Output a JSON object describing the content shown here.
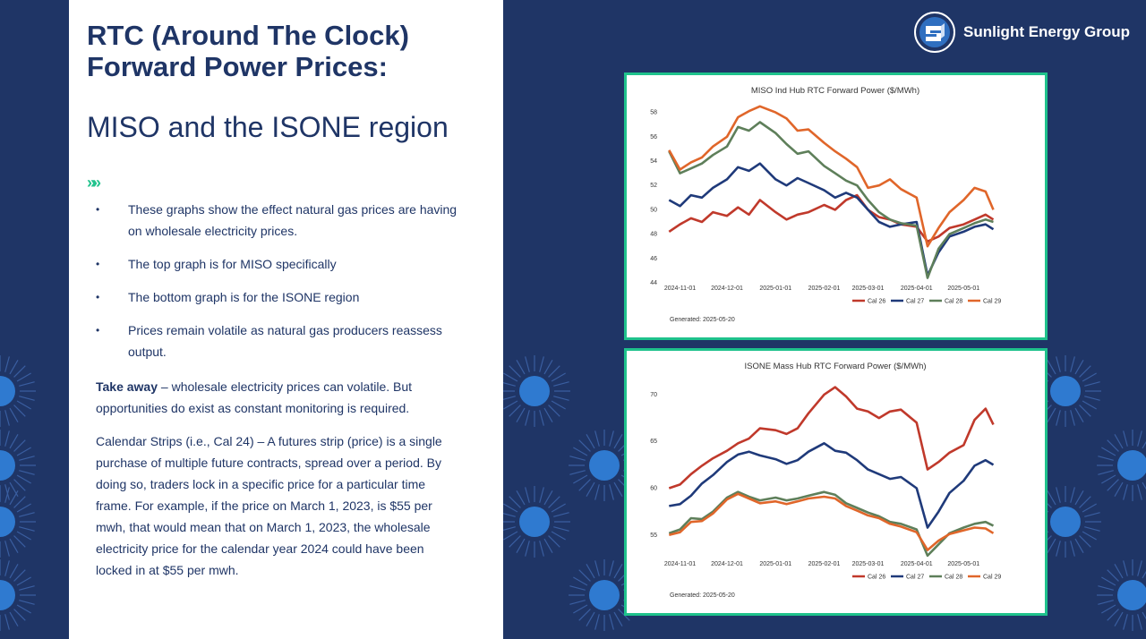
{
  "brand": {
    "name": "Sunlight Energy Group"
  },
  "slide": {
    "title": "RTC (Around The Clock) Forward Power Prices:",
    "subtitle": "MISO and the ISONE region",
    "chevrons": "»»",
    "bullets": [
      "These graphs show the effect natural gas prices are having on wholesale electricity prices.",
      "The top graph is for MISO specifically",
      "The bottom graph is for the ISONE region",
      "Prices remain volatile as natural gas producers reassess output."
    ],
    "takeaway_label": "Take away",
    "takeaway_text": " – wholesale electricity prices can volatile. But opportunities do exist as constant monitoring is required.",
    "calendar_text": "Calendar Strips (i.e., Cal 24) – A futures strip (price) is a single purchase of multiple future contracts, spread over a period. By doing so, traders lock in a specific price for a particular time frame.  For example, if the price on March 1, 2023, is $55 per mwh, that would mean that on March 1, 2023, the wholesale electricity price for the calendar year 2024 could have been locked in at $55 per mwh."
  },
  "colors": {
    "cal26": "#c0392b",
    "cal27": "#1f3a7a",
    "cal28": "#5e7f5a",
    "cal29": "#e0662a",
    "accent": "#1fc28c"
  },
  "chart_data": [
    {
      "type": "line",
      "title": "MISO Ind Hub RTC Forward Power ($/MWh)",
      "generated": "Generated: 2025-05-20",
      "x_ticks": [
        "2024-11-01",
        "2024-12-01",
        "2025-01-01",
        "2025-02-01",
        "2025-03-01",
        "2025-04-01",
        "2025-05-01"
      ],
      "y_ticks": [
        44,
        46,
        48,
        50,
        52,
        54,
        56,
        58
      ],
      "ylim": [
        44,
        59
      ],
      "x_dates": [
        "2024-10-25",
        "2024-11-01",
        "2024-11-08",
        "2024-11-15",
        "2024-11-22",
        "2024-12-01",
        "2024-12-08",
        "2024-12-15",
        "2024-12-22",
        "2025-01-01",
        "2025-01-08",
        "2025-01-15",
        "2025-01-22",
        "2025-02-01",
        "2025-02-08",
        "2025-02-15",
        "2025-02-22",
        "2025-03-01",
        "2025-03-08",
        "2025-03-15",
        "2025-03-22",
        "2025-04-01",
        "2025-04-08",
        "2025-04-15",
        "2025-04-22",
        "2025-05-01",
        "2025-05-08",
        "2025-05-15",
        "2025-05-20"
      ],
      "series": [
        {
          "name": "Cal 26",
          "values": [
            48.2,
            48.8,
            49.3,
            49.0,
            49.8,
            49.5,
            50.2,
            49.6,
            50.8,
            49.8,
            49.2,
            49.6,
            49.8,
            50.4,
            50.0,
            50.8,
            51.2,
            50.0,
            49.4,
            49.2,
            48.8,
            48.6,
            47.4,
            47.8,
            48.5,
            48.8,
            49.2,
            49.6,
            49.2
          ]
        },
        {
          "name": "Cal 27",
          "values": [
            50.8,
            50.3,
            51.2,
            51.0,
            51.8,
            52.5,
            53.5,
            53.2,
            53.8,
            52.5,
            52.0,
            52.6,
            52.2,
            51.6,
            51.0,
            51.4,
            51.0,
            50.0,
            49.0,
            48.6,
            48.8,
            49.0,
            44.6,
            46.5,
            47.8,
            48.2,
            48.6,
            48.8,
            48.4
          ]
        },
        {
          "name": "Cal 28",
          "values": [
            54.8,
            53.0,
            53.4,
            53.8,
            54.5,
            55.2,
            56.8,
            56.5,
            57.2,
            56.3,
            55.4,
            54.6,
            54.8,
            53.6,
            53.0,
            52.4,
            52.0,
            50.8,
            49.8,
            49.2,
            48.9,
            48.7,
            44.4,
            46.8,
            48.0,
            48.5,
            48.9,
            49.2,
            49.0
          ]
        },
        {
          "name": "Cal 29",
          "values": [
            54.9,
            53.3,
            53.9,
            54.3,
            55.2,
            56.0,
            57.6,
            58.1,
            58.5,
            58.0,
            57.5,
            56.5,
            56.6,
            55.5,
            54.8,
            54.2,
            53.5,
            51.8,
            52.0,
            52.5,
            51.7,
            51.0,
            47.0,
            48.5,
            49.8,
            50.8,
            51.8,
            51.5,
            50.0
          ]
        }
      ]
    },
    {
      "type": "line",
      "title": "ISONE Mass Hub RTC Forward Power ($/MWh)",
      "generated": "Generated: 2025-05-20",
      "x_ticks": [
        "2024-11-01",
        "2024-12-01",
        "2025-01-01",
        "2025-02-01",
        "2025-03-01",
        "2025-04-01",
        "2025-05-01"
      ],
      "y_ticks": [
        55,
        60,
        65,
        70
      ],
      "ylim": [
        52.5,
        72
      ],
      "x_dates": [
        "2024-10-25",
        "2024-11-01",
        "2024-11-08",
        "2024-11-15",
        "2024-11-22",
        "2024-12-01",
        "2024-12-08",
        "2024-12-15",
        "2024-12-22",
        "2025-01-01",
        "2025-01-08",
        "2025-01-15",
        "2025-01-22",
        "2025-02-01",
        "2025-02-08",
        "2025-02-15",
        "2025-02-22",
        "2025-03-01",
        "2025-03-08",
        "2025-03-15",
        "2025-03-22",
        "2025-04-01",
        "2025-04-08",
        "2025-04-15",
        "2025-04-22",
        "2025-05-01",
        "2025-05-08",
        "2025-05-15",
        "2025-05-20"
      ],
      "series": [
        {
          "name": "Cal 26",
          "values": [
            60.0,
            60.4,
            61.5,
            62.4,
            63.2,
            64.0,
            64.8,
            65.3,
            66.4,
            66.2,
            65.8,
            66.4,
            68.0,
            70.0,
            70.8,
            69.8,
            68.5,
            68.2,
            67.5,
            68.2,
            68.4,
            67.0,
            62.0,
            62.8,
            63.8,
            64.6,
            67.3,
            68.5,
            66.8
          ]
        },
        {
          "name": "Cal 27",
          "values": [
            58.1,
            58.3,
            59.2,
            60.5,
            61.4,
            62.8,
            63.6,
            63.9,
            63.5,
            63.1,
            62.6,
            63.0,
            63.9,
            64.8,
            64.0,
            63.8,
            63.0,
            62.0,
            61.5,
            61.0,
            61.2,
            60.0,
            55.8,
            57.5,
            59.5,
            60.8,
            62.4,
            63.0,
            62.5
          ]
        },
        {
          "name": "Cal 28",
          "values": [
            55.2,
            55.6,
            56.8,
            56.7,
            57.5,
            59.0,
            59.6,
            59.1,
            58.7,
            59.0,
            58.7,
            58.9,
            59.2,
            59.6,
            59.3,
            58.4,
            57.9,
            57.4,
            57.0,
            56.4,
            56.2,
            55.6,
            52.8,
            54.0,
            55.2,
            55.8,
            56.2,
            56.4,
            56.0
          ]
        },
        {
          "name": "Cal 29",
          "values": [
            55.0,
            55.3,
            56.4,
            56.5,
            57.3,
            58.8,
            59.4,
            58.9,
            58.4,
            58.6,
            58.3,
            58.6,
            58.9,
            59.1,
            58.9,
            58.1,
            57.6,
            57.1,
            56.8,
            56.2,
            55.9,
            55.3,
            53.4,
            54.4,
            55.1,
            55.5,
            55.8,
            55.7,
            55.2
          ]
        }
      ]
    }
  ]
}
